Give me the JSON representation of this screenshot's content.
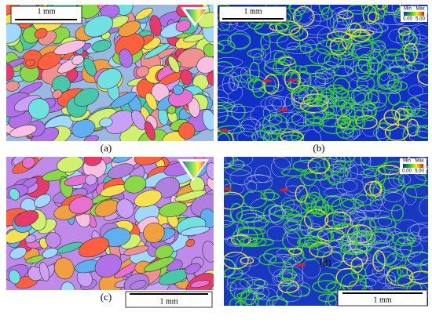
{
  "panels": [
    {
      "label": "(a)",
      "scale_bar": "1 mm"
    },
    {
      "label": "(b)",
      "scale_bar": "1 mm",
      "legend": {
        "min_label": "Min",
        "min": "0.00",
        "max_label": "Max",
        "max": "5.00"
      }
    },
    {
      "label": "(c)",
      "scale_bar": "1 mm"
    },
    {
      "label": "(d)",
      "scale_bar": "1 mm",
      "legend": {
        "min_label": "Min",
        "min": "0.00",
        "max_label": "Max",
        "max": "5.00"
      }
    }
  ]
}
